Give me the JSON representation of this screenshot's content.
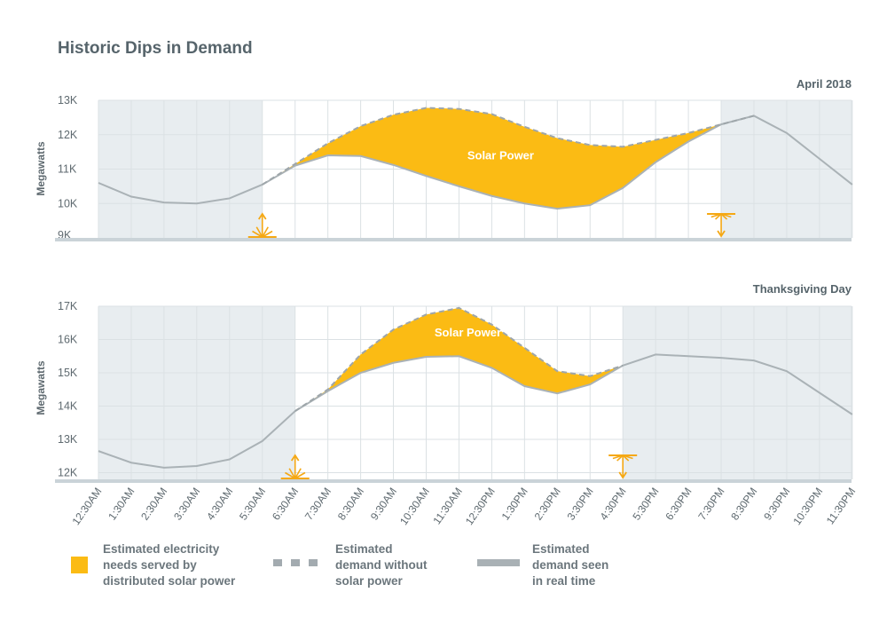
{
  "header": {
    "title": "Historic Dips in Demand"
  },
  "chart_data": [
    {
      "type": "area",
      "title": "April 2018",
      "ylabel": "Megawatts",
      "ylim": [
        9000,
        13000
      ],
      "yticks": [
        9000,
        10000,
        11000,
        12000,
        13000
      ],
      "ytick_labels": [
        "9K",
        "10K",
        "11K",
        "12K",
        "13K"
      ],
      "x": [
        "12:30AM",
        "1:30AM",
        "2:30AM",
        "3:30AM",
        "4:30AM",
        "5:30AM",
        "6:30AM",
        "7:30AM",
        "8:30AM",
        "9:30AM",
        "10:30AM",
        "11:30AM",
        "12:30PM",
        "1:30PM",
        "2:30PM",
        "3:30PM",
        "4:30PM",
        "5:30PM",
        "6:30PM",
        "7:30PM",
        "8:30PM",
        "9:30PM",
        "10:30PM",
        "11:30PM"
      ],
      "series": [
        {
          "name": "Estimated demand seen in real time",
          "values": [
            10600,
            10200,
            10030,
            10000,
            10150,
            10550,
            11100,
            11400,
            11380,
            11120,
            10800,
            10500,
            10220,
            10000,
            9850,
            9950,
            10450,
            11200,
            11800,
            12300,
            12550,
            12050,
            11300,
            10550
          ]
        },
        {
          "name": "Estimated demand without solar power",
          "values": [
            null,
            null,
            null,
            null,
            null,
            10550,
            11150,
            11750,
            12250,
            12580,
            12780,
            12750,
            12600,
            12230,
            11900,
            11700,
            11650,
            11850,
            12050,
            12300,
            12550,
            null,
            null,
            null
          ]
        }
      ],
      "annotations": [
        {
          "text": "Solar Power"
        },
        {
          "type": "sunrise",
          "at": "5:30AM"
        },
        {
          "type": "sunset",
          "at": "7:30PM"
        }
      ],
      "shaded_night": [
        [
          "12:30AM",
          "5:30AM"
        ],
        [
          "7:30PM",
          "11:30PM"
        ]
      ]
    },
    {
      "type": "area",
      "title": "Thanksgiving Day",
      "ylabel": "Megawatts",
      "ylim": [
        11800,
        17000
      ],
      "yticks": [
        12000,
        13000,
        14000,
        15000,
        16000,
        17000
      ],
      "ytick_labels": [
        "12K",
        "13K",
        "14K",
        "15K",
        "16K",
        "17K"
      ],
      "x": [
        "12:30AM",
        "1:30AM",
        "2:30AM",
        "3:30AM",
        "4:30AM",
        "5:30AM",
        "6:30AM",
        "7:30AM",
        "8:30AM",
        "9:30AM",
        "10:30AM",
        "11:30AM",
        "12:30PM",
        "1:30PM",
        "2:30PM",
        "3:30PM",
        "4:30PM",
        "5:30PM",
        "6:30PM",
        "7:30PM",
        "8:30PM",
        "9:30PM",
        "10:30PM",
        "11:30PM"
      ],
      "series": [
        {
          "name": "Estimated demand seen in real time",
          "values": [
            12650,
            12300,
            12150,
            12200,
            12400,
            12950,
            13850,
            14450,
            15000,
            15300,
            15480,
            15500,
            15150,
            14600,
            14380,
            14650,
            15220,
            15550,
            15500,
            15450,
            15370,
            15050,
            14400,
            13750
          ]
        },
        {
          "name": "Estimated demand without solar power",
          "values": [
            null,
            null,
            null,
            null,
            null,
            null,
            13850,
            14500,
            15550,
            16300,
            16750,
            16950,
            16450,
            15750,
            15050,
            14900,
            15220,
            null,
            null,
            null,
            null,
            null,
            null,
            null
          ]
        }
      ],
      "annotations": [
        {
          "text": "Solar Power"
        },
        {
          "type": "sunrise",
          "at": "6:30AM"
        },
        {
          "type": "sunset",
          "at": "4:30PM"
        }
      ],
      "shaded_night": [
        [
          "12:30AM",
          "6:30AM"
        ],
        [
          "4:30PM",
          "11:30PM"
        ]
      ]
    }
  ],
  "legend": [
    {
      "text": [
        "Estimated electricity",
        "needs served by",
        "distributed solar power"
      ],
      "swatch": "solar"
    },
    {
      "text": [
        "Estimated",
        "demand without",
        "solar power"
      ],
      "swatch": "dashed"
    },
    {
      "text": [
        "Estimated",
        "demand seen",
        "in real time"
      ],
      "swatch": "solid"
    }
  ],
  "colors": {
    "solar": "#fbbb14",
    "real": "#aab2b6",
    "no_solar": "#9ea6aa",
    "night": "#e8edf0",
    "grid": "#dbe1e4",
    "baseline": "#cad3d8",
    "text": "#5f6a70",
    "annotation": "#f5a814"
  }
}
